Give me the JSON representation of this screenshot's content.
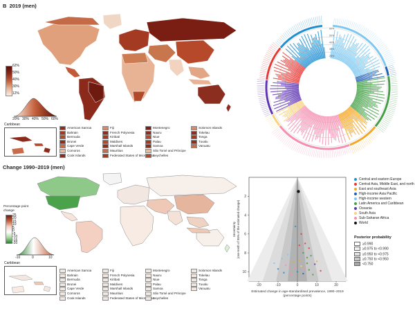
{
  "panel_top": {
    "label": "B",
    "title": "2019 (men)",
    "colorbar_ticks": [
      "62%",
      "50%",
      "40%",
      "30%",
      "12%"
    ],
    "hist_ticks": [
      "20%",
      "30%",
      "40%",
      "50%",
      "60%"
    ],
    "inset_label": "Caribbean",
    "countries": [
      {
        "name": "American Samoa",
        "color": "#8b2e1f"
      },
      {
        "name": "Bahrain",
        "color": "#a33a20"
      },
      {
        "name": "Bermuda",
        "color": "#b04a2a"
      },
      {
        "name": "Brunei",
        "color": "#8b2e1f"
      },
      {
        "name": "Cape Verde",
        "color": "#c86b48"
      },
      {
        "name": "Comoros",
        "color": "#e8b99a"
      },
      {
        "name": "Cook Islands",
        "color": "#8b2e1f"
      },
      {
        "name": "Fiji",
        "color": "#d88a66"
      },
      {
        "name": "French Polynesia",
        "color": "#8b2e1f"
      },
      {
        "name": "Kiribati",
        "color": "#a33a20"
      },
      {
        "name": "Maldives",
        "color": "#b04a2a"
      },
      {
        "name": "Marshall Islands",
        "color": "#8b2e1f"
      },
      {
        "name": "Mauritius",
        "color": "#c86b48"
      },
      {
        "name": "Federated States of Micronesia",
        "color": "#a33a20"
      },
      {
        "name": "Montenegro",
        "color": "#7a2016"
      },
      {
        "name": "Nauru",
        "color": "#8b2e1f"
      },
      {
        "name": "Niue",
        "color": "#b04a2a"
      },
      {
        "name": "Palau",
        "color": "#a33a20"
      },
      {
        "name": "Samoa",
        "color": "#8b2e1f"
      },
      {
        "name": "São Tomé and Príncipe",
        "color": "#e8b99a"
      },
      {
        "name": "Seychelles",
        "color": "#b04a2a"
      },
      {
        "name": "Solomon Islands",
        "color": "#d88a66"
      },
      {
        "name": "Tokelau",
        "color": "#8b2e1f"
      },
      {
        "name": "Tonga",
        "color": "#a33a20"
      },
      {
        "name": "Tuvalu",
        "color": "#8b2e1f"
      },
      {
        "name": "Vanuatu",
        "color": "#c86b48"
      }
    ]
  },
  "panel_bottom": {
    "title": "Change 1990–2019 (men)",
    "colorbar_title": "Percentage point change",
    "colorbar_ticks": [
      "25",
      "20",
      "15",
      "10",
      "5",
      "0",
      "-5",
      "-10",
      "-15",
      "-20"
    ],
    "hist_ticks": [
      "-10",
      "0",
      "10"
    ],
    "inset_label": "Caribbean",
    "countries": [
      {
        "name": "American Samoa",
        "color": "#f2e6e0"
      },
      {
        "name": "Bahrain",
        "color": "#f2e6e0"
      },
      {
        "name": "Bermuda",
        "color": "#f2e6e0"
      },
      {
        "name": "Brunei",
        "color": "#f2e6e0"
      },
      {
        "name": "Cape Verde",
        "color": "#f2e6e0"
      },
      {
        "name": "Comoros",
        "color": "#f2e6e0"
      },
      {
        "name": "Cook Islands",
        "color": "#f2e6e0"
      },
      {
        "name": "Fiji",
        "color": "#f2e6e0"
      },
      {
        "name": "French Polynesia",
        "color": "#f2e6e0"
      },
      {
        "name": "Kiribati",
        "color": "#f2e6e0"
      },
      {
        "name": "Maldives",
        "color": "#f2e6e0"
      },
      {
        "name": "Marshall Islands",
        "color": "#f2e6e0"
      },
      {
        "name": "Mauritius",
        "color": "#f2e6e0"
      },
      {
        "name": "Federated States of Micronesia",
        "color": "#f2e6e0"
      },
      {
        "name": "Montenegro",
        "color": "#f2e6e0"
      },
      {
        "name": "Nauru",
        "color": "#f2e6e0"
      },
      {
        "name": "Niue",
        "color": "#f2e6e0"
      },
      {
        "name": "Palau",
        "color": "#f2e6e0"
      },
      {
        "name": "Samoa",
        "color": "#f2e6e0"
      },
      {
        "name": "São Tomé and Príncipe",
        "color": "#f2e6e0"
      },
      {
        "name": "Seychelles",
        "color": "#f2e6e0"
      },
      {
        "name": "Solomon Islands",
        "color": "#f2e6e0"
      },
      {
        "name": "Tokelau",
        "color": "#f2e6e0"
      },
      {
        "name": "Tonga",
        "color": "#f2e6e0"
      },
      {
        "name": "Tuvalu",
        "color": "#f2e6e0"
      },
      {
        "name": "Vanuatu",
        "color": "#f2e6e0"
      }
    ]
  },
  "regions": [
    {
      "name": "Central and eastern Europe",
      "color": "#1f8fd1"
    },
    {
      "name": "Central Asia, Middle East, and north Africa",
      "color": "#e53935"
    },
    {
      "name": "East and southeast Asia",
      "color": "#f5a623"
    },
    {
      "name": "High-income Asia Pacific",
      "color": "#1f5fb4"
    },
    {
      "name": "High-income western",
      "color": "#7ec8f0"
    },
    {
      "name": "Latin America and Caribbean",
      "color": "#43a047"
    },
    {
      "name": "Oceania",
      "color": "#5e35b1"
    },
    {
      "name": "South Asia",
      "color": "#f7d27a"
    },
    {
      "name": "Sub-Saharan Africa",
      "color": "#f48fb1"
    },
    {
      "name": "World",
      "color": "#111111"
    }
  ],
  "posterior": {
    "title": "Posterior probability",
    "items": [
      {
        "label": "≥0.990",
        "color": "#ffffff"
      },
      {
        "label": "≥0.975 to <0.990",
        "color": "#f2f2f2"
      },
      {
        "label": "≥0.950 to <0.975",
        "color": "#e0e0e0"
      },
      {
        "label": "≥0.750 to <0.950",
        "color": "#c8c8c8"
      },
      {
        "label": "<0.750",
        "color": "#a8a8a8"
      }
    ]
  },
  "chart_data": [
    {
      "type": "scatter",
      "xlabel": "Estimated change in age-standardised prevalence, 1990–2019 (percentage points)",
      "ylabel": "Uncertainty (one-tenth of 95% of the estimated change) (percentage points)",
      "x_ticks": [
        -20,
        -10,
        0,
        10,
        20
      ],
      "y_ticks": [
        2,
        4,
        6,
        8,
        10
      ],
      "xlim": [
        -25,
        25
      ],
      "ylim": [
        0,
        11
      ],
      "y_inverted": true,
      "points": [
        {
          "x": 0.5,
          "y": 1.5,
          "region": "World"
        },
        {
          "x": -1,
          "y": 5.2,
          "region": "Central and eastern Europe"
        },
        {
          "x": 2,
          "y": 6.0,
          "region": "Central Asia, Middle East, and north Africa"
        },
        {
          "x": 4,
          "y": 7.0,
          "region": "Central Asia, Middle East, and north Africa"
        },
        {
          "x": 6,
          "y": 7.5,
          "region": "Central Asia, Middle East, and north Africa"
        },
        {
          "x": -3,
          "y": 7.8,
          "region": "High-income western"
        },
        {
          "x": -5,
          "y": 8.2,
          "region": "High-income western"
        },
        {
          "x": -8,
          "y": 8.6,
          "region": "High-income western"
        },
        {
          "x": 3,
          "y": 8.0,
          "region": "Latin America and Caribbean"
        },
        {
          "x": 5,
          "y": 8.5,
          "region": "Latin America and Caribbean"
        },
        {
          "x": 7,
          "y": 8.3,
          "region": "Latin America and Caribbean"
        },
        {
          "x": 1,
          "y": 8.8,
          "region": "East and southeast Asia"
        },
        {
          "x": -2,
          "y": 9.0,
          "region": "East and southeast Asia"
        },
        {
          "x": 9,
          "y": 9.2,
          "region": "Oceania"
        },
        {
          "x": -6,
          "y": 9.3,
          "region": "Sub-Saharan Africa"
        },
        {
          "x": -4,
          "y": 9.5,
          "region": "Sub-Saharan Africa"
        },
        {
          "x": -1,
          "y": 9.6,
          "region": "Sub-Saharan Africa"
        },
        {
          "x": 2,
          "y": 9.4,
          "region": "South Asia"
        },
        {
          "x": 4,
          "y": 9.7,
          "region": "Sub-Saharan Africa"
        },
        {
          "x": 6,
          "y": 9.8,
          "region": "Latin America and Caribbean"
        },
        {
          "x": 0,
          "y": 10.0,
          "region": "Central and eastern Europe"
        },
        {
          "x": -10,
          "y": 9.7,
          "region": "Central and eastern Europe"
        },
        {
          "x": 12,
          "y": 9.9,
          "region": "Central Asia, Middle East, and north Africa"
        },
        {
          "x": -7,
          "y": 10.1,
          "region": "Central and eastern Europe"
        },
        {
          "x": 3,
          "y": 10.2,
          "region": "High-income Asia Pacific"
        },
        {
          "x": 8,
          "y": 10.3,
          "region": "Latin America and Caribbean"
        },
        {
          "x": -3,
          "y": 10.3,
          "region": "Sub-Saharan Africa"
        },
        {
          "x": 1,
          "y": 7.2,
          "region": "Central Asia, Middle East, and north Africa"
        },
        {
          "x": -2,
          "y": 6.8,
          "region": "High-income western"
        },
        {
          "x": 5,
          "y": 9.1,
          "region": "Latin America and Caribbean"
        },
        {
          "x": 10,
          "y": 8.9,
          "region": "East and southeast Asia"
        },
        {
          "x": -12,
          "y": 9.1,
          "region": "High-income western"
        }
      ]
    },
    {
      "type": "pie",
      "circle_ticks": [
        "60%",
        "50%",
        "40%",
        "30%",
        "20%"
      ],
      "segments": [
        {
          "region": "High-income western",
          "value": 42
        },
        {
          "region": "High-income Asia Pacific",
          "value": 6
        },
        {
          "region": "Latin America and Caribbean",
          "value": 32
        },
        {
          "region": "East and southeast Asia",
          "value": 19
        },
        {
          "region": "Sub-Saharan Africa",
          "value": 46
        },
        {
          "region": "South Asia",
          "value": 8
        },
        {
          "region": "Oceania",
          "value": 21
        },
        {
          "region": "Central Asia, Middle East, and north Africa",
          "value": 21
        },
        {
          "region": "Central and eastern Europe",
          "value": 29
        }
      ]
    }
  ]
}
